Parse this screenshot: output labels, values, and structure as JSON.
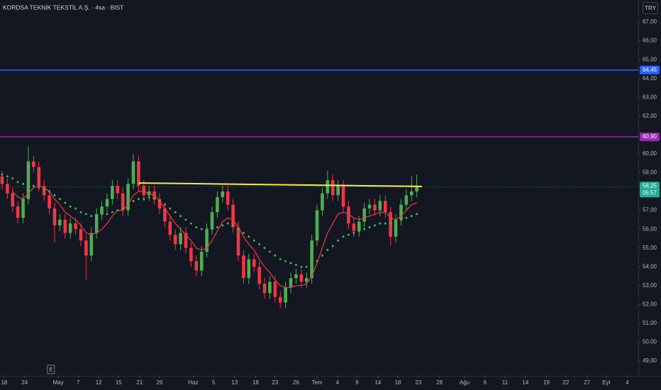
{
  "chart_data": {
    "type": "candlestick",
    "title": "KORDSA TEKNİK TEKSTİL A.Ş. · 4sa · BIST",
    "currency": "TRY",
    "up_color": "#4caf50",
    "down_color": "#f23645",
    "open": [
      58.8,
      58.4,
      57.9,
      57.2,
      56.6,
      57.6,
      59.6,
      59.3,
      58.3,
      57.8,
      57.1,
      56.2,
      56.5,
      55.8,
      56.3,
      56.0,
      55.4,
      54.6,
      55.8,
      56.8,
      57.2,
      57.6,
      58.3,
      57.9,
      57.0,
      58.4,
      59.6,
      58.3,
      57.8,
      58.0,
      57.6,
      57.1,
      56.4,
      55.7,
      55.2,
      55.8,
      55.0,
      54.3,
      53.8,
      54.8,
      56.0,
      56.9,
      57.7,
      58.0,
      57.3,
      56.1,
      54.6,
      53.4,
      54.4,
      54.0,
      53.1,
      52.6,
      53.2,
      52.4,
      52.1,
      52.9,
      53.4,
      53.6,
      53.2,
      53.4,
      55.4,
      57.0,
      57.9,
      58.6,
      57.8,
      58.3,
      57.2,
      56.3,
      55.9,
      56.4,
      57.1,
      57.3,
      57.0,
      57.5,
      56.9,
      55.6,
      56.5,
      57.3,
      57.8,
      58.0
    ],
    "high": [
      59.1,
      58.7,
      58.2,
      57.5,
      57.9,
      60.4,
      59.9,
      59.6,
      58.6,
      58.1,
      57.4,
      56.8,
      56.8,
      56.6,
      56.6,
      56.3,
      55.7,
      56.1,
      57.1,
      57.5,
      57.9,
      58.6,
      58.6,
      58.2,
      58.7,
      60.0,
      59.9,
      58.6,
      58.3,
      58.3,
      57.9,
      57.4,
      56.7,
      56.0,
      56.1,
      56.1,
      55.3,
      54.6,
      55.1,
      56.3,
      57.2,
      58.0,
      58.3,
      58.3,
      57.6,
      56.4,
      54.9,
      54.7,
      54.7,
      54.3,
      53.4,
      53.5,
      53.5,
      52.7,
      53.2,
      53.7,
      53.9,
      53.9,
      53.7,
      55.7,
      57.3,
      58.2,
      59.1,
      58.9,
      58.6,
      58.6,
      57.5,
      56.6,
      56.7,
      57.4,
      57.6,
      57.6,
      57.8,
      57.8,
      57.2,
      56.8,
      57.6,
      58.1,
      58.8,
      58.9
    ],
    "low": [
      58.1,
      57.6,
      56.9,
      56.3,
      56.3,
      57.3,
      59.0,
      58.0,
      57.5,
      56.8,
      55.3,
      55.9,
      55.5,
      55.5,
      55.7,
      55.1,
      53.3,
      54.3,
      55.5,
      56.5,
      56.9,
      57.3,
      57.6,
      56.7,
      56.7,
      58.1,
      58.0,
      57.5,
      57.5,
      57.3,
      56.8,
      56.1,
      55.4,
      54.9,
      54.9,
      54.7,
      54.0,
      53.5,
      53.5,
      54.5,
      55.7,
      56.6,
      57.4,
      57.0,
      55.8,
      54.3,
      53.1,
      53.1,
      53.7,
      52.8,
      52.3,
      52.3,
      52.1,
      51.8,
      51.8,
      52.6,
      53.1,
      52.9,
      52.9,
      53.1,
      55.1,
      56.7,
      57.6,
      57.5,
      57.5,
      56.9,
      56.0,
      55.6,
      55.6,
      56.1,
      56.8,
      56.7,
      56.7,
      56.6,
      55.1,
      55.3,
      56.2,
      57.0,
      57.5,
      57.7
    ],
    "close": [
      58.4,
      57.9,
      57.2,
      56.6,
      57.6,
      59.6,
      59.3,
      58.3,
      57.8,
      57.1,
      56.2,
      56.5,
      55.8,
      56.3,
      56.0,
      55.4,
      54.6,
      55.8,
      56.8,
      57.2,
      57.6,
      58.3,
      57.9,
      57.0,
      58.4,
      59.6,
      58.3,
      57.8,
      58.0,
      57.6,
      57.1,
      56.4,
      55.7,
      55.2,
      55.8,
      55.0,
      54.3,
      53.8,
      54.8,
      56.0,
      56.9,
      57.7,
      58.0,
      57.3,
      56.1,
      54.6,
      53.4,
      54.4,
      54.0,
      53.1,
      52.6,
      53.2,
      52.4,
      52.1,
      52.9,
      53.4,
      53.6,
      53.2,
      53.4,
      55.4,
      57.0,
      57.9,
      58.6,
      57.8,
      58.3,
      57.2,
      56.3,
      55.9,
      56.4,
      57.1,
      57.3,
      57.0,
      57.5,
      56.9,
      55.6,
      56.5,
      57.3,
      57.8,
      58.0,
      58.25
    ],
    "series": [
      {
        "color": "#f23645",
        "style": "line",
        "values": [
          null,
          null,
          58.0,
          57.7,
          57.6,
          57.9,
          58.2,
          58.3,
          58.2,
          58.0,
          57.6,
          57.3,
          56.9,
          56.7,
          56.5,
          56.2,
          55.8,
          55.7,
          55.8,
          56.0,
          56.3,
          56.7,
          57.0,
          57.0,
          57.3,
          57.8,
          58.0,
          58.0,
          57.9,
          57.8,
          57.5,
          57.1,
          56.7,
          56.3,
          56.0,
          55.7,
          55.4,
          55.0,
          54.9,
          55.0,
          55.4,
          55.9,
          56.4,
          56.6,
          56.5,
          56.1,
          55.6,
          55.2,
          54.9,
          54.4,
          54.0,
          53.7,
          53.3,
          53.0,
          52.9,
          52.9,
          53.0,
          53.0,
          53.1,
          53.5,
          54.2,
          55.0,
          55.8,
          56.3,
          56.8,
          56.9,
          56.8,
          56.6,
          56.5,
          56.6,
          56.7,
          56.8,
          56.9,
          56.9,
          56.6,
          56.5,
          56.7,
          57.0,
          57.3,
          57.4
        ]
      },
      {
        "color": "#4caf50",
        "style": "dots",
        "values": [
          58.9,
          58.8,
          58.7,
          58.5,
          58.4,
          58.3,
          58.3,
          58.2,
          58.1,
          58.0,
          57.8,
          57.6,
          57.4,
          57.2,
          57.1,
          56.9,
          56.8,
          56.7,
          56.7,
          56.8,
          56.8,
          56.9,
          57.0,
          57.1,
          57.3,
          57.5,
          57.6,
          57.6,
          57.7,
          57.6,
          57.5,
          57.3,
          57.1,
          56.9,
          56.7,
          56.5,
          56.3,
          56.1,
          56.0,
          56.0,
          56.0,
          56.1,
          56.2,
          56.3,
          56.2,
          56.0,
          55.8,
          55.6,
          55.4,
          55.2,
          55.0,
          54.8,
          54.6,
          54.4,
          54.3,
          54.2,
          54.1,
          54.0,
          54.0,
          54.1,
          54.3,
          54.6,
          54.9,
          55.1,
          55.4,
          55.6,
          55.7,
          55.8,
          55.9,
          56.0,
          56.1,
          56.2,
          56.3,
          56.3,
          56.3,
          56.4,
          56.5,
          56.6,
          56.7,
          56.8
        ]
      }
    ],
    "hlines": [
      {
        "value": 64.45,
        "label": "64,45",
        "color": "#2962ff"
      },
      {
        "value": 60.9,
        "label": "60,90",
        "color": "#9c27b0"
      }
    ],
    "trendline": {
      "x": [
        26,
        80
      ],
      "y": [
        58.45,
        58.27
      ],
      "color": "#ffeb3b"
    },
    "last_price": {
      "value": 58.25,
      "label": "58,25",
      "countdown": "05:57",
      "color": "#22ab94"
    },
    "events": [
      {
        "label": "E",
        "x": 9.3
      }
    ],
    "ylim": [
      48.21,
      68.17
    ],
    "yticks": [
      {
        "value": 67,
        "label": "67,00"
      },
      {
        "value": 66,
        "label": "66,00"
      },
      {
        "value": 65,
        "label": "65,00"
      },
      {
        "value": 64,
        "label": "64,00"
      },
      {
        "value": 63,
        "label": "63,00"
      },
      {
        "value": 62,
        "label": "62,00"
      },
      {
        "value": 60,
        "label": "60,00"
      },
      {
        "value": 59,
        "label": "59,00"
      },
      {
        "value": 57,
        "label": "57,00"
      },
      {
        "value": 56,
        "label": "56,00"
      },
      {
        "value": 55,
        "label": "55,00"
      },
      {
        "value": 54,
        "label": "54,00"
      },
      {
        "value": 53,
        "label": "53,00"
      },
      {
        "value": 52,
        "label": "52,00"
      },
      {
        "value": 51,
        "label": "51,00"
      },
      {
        "value": 50,
        "label": "50,00"
      },
      {
        "value": 49,
        "label": "49,00"
      }
    ],
    "xlim": [
      -0.4,
      121.2
    ],
    "xticks": [
      {
        "value": 0.4,
        "label": "18"
      },
      {
        "value": 4.3,
        "label": "24"
      },
      {
        "value": 10.7,
        "label": "May"
      },
      {
        "value": 14.5,
        "label": "7"
      },
      {
        "value": 18.4,
        "label": "12"
      },
      {
        "value": 22.2,
        "label": "15"
      },
      {
        "value": 26.2,
        "label": "21"
      },
      {
        "value": 30.0,
        "label": "26"
      },
      {
        "value": 36.4,
        "label": "Haz"
      },
      {
        "value": 40.3,
        "label": "5"
      },
      {
        "value": 44.3,
        "label": "13"
      },
      {
        "value": 48.3,
        "label": "18"
      },
      {
        "value": 52.0,
        "label": "23"
      },
      {
        "value": 56.0,
        "label": "26"
      },
      {
        "value": 60.0,
        "label": "Tem"
      },
      {
        "value": 63.9,
        "label": "4"
      },
      {
        "value": 67.6,
        "label": "9"
      },
      {
        "value": 71.6,
        "label": "14"
      },
      {
        "value": 75.4,
        "label": "18"
      },
      {
        "value": 79.3,
        "label": "23"
      },
      {
        "value": 83.3,
        "label": "28"
      },
      {
        "value": 88.1,
        "label": "Ağu"
      },
      {
        "value": 92.0,
        "label": "6"
      },
      {
        "value": 95.8,
        "label": "11"
      },
      {
        "value": 99.7,
        "label": "14"
      },
      {
        "value": 103.7,
        "label": "19"
      },
      {
        "value": 107.4,
        "label": "22"
      },
      {
        "value": 111.4,
        "label": "27"
      },
      {
        "value": 115.1,
        "label": "Eyl"
      },
      {
        "value": 119.1,
        "label": "4"
      }
    ]
  }
}
